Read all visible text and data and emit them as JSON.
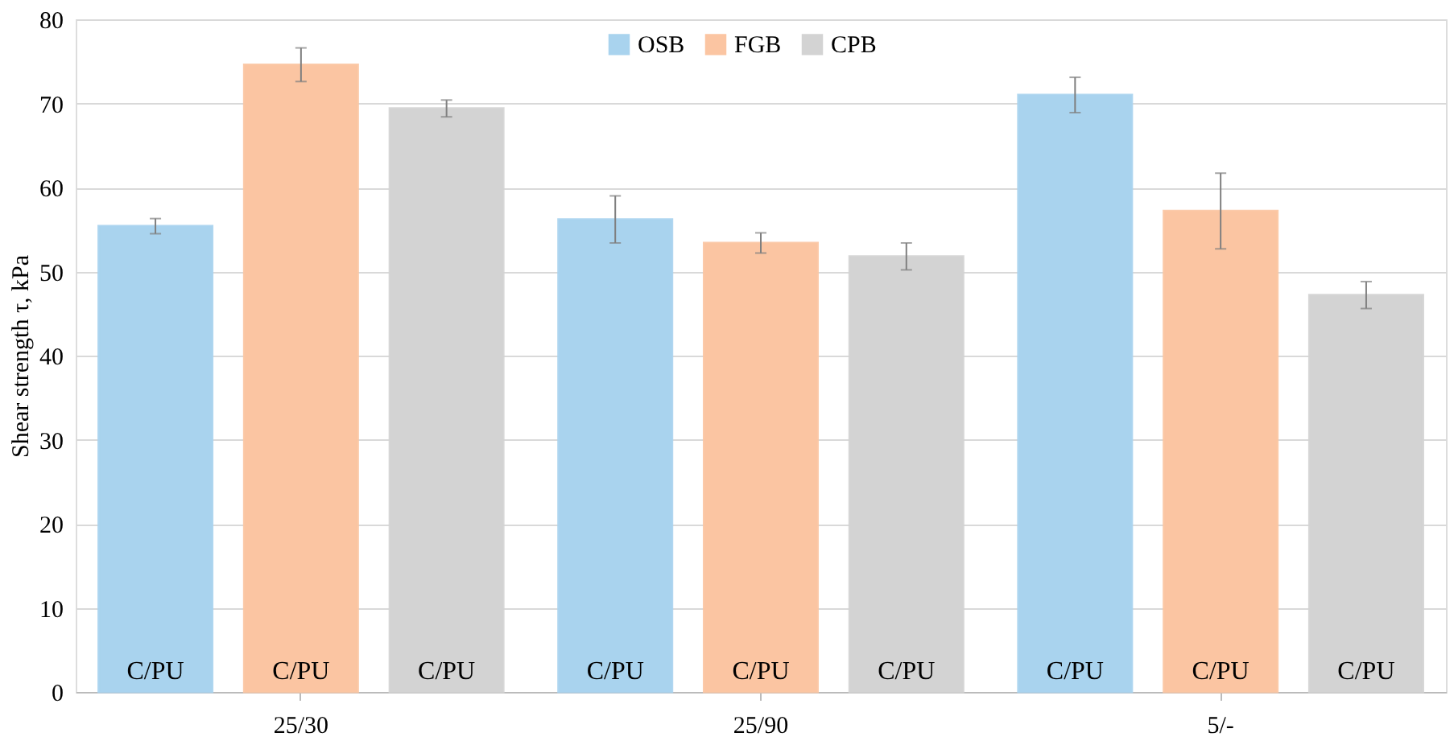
{
  "chart_data": {
    "type": "bar",
    "ylabel": "Shear strength τ, kPa",
    "categories": [
      "25/30",
      "25/90",
      "5/-"
    ],
    "series": [
      {
        "name": "OSB",
        "color": "#a9d3ee",
        "values": [
          55.4,
          56.2,
          71.0
        ],
        "errors": [
          0.9,
          2.8,
          2.1
        ],
        "value_labels": [
          "C/PU",
          "C/PU",
          "C/PU"
        ]
      },
      {
        "name": "FGB",
        "color": "#fbc5a2",
        "values": [
          74.6,
          53.4,
          57.2
        ],
        "errors": [
          2.0,
          1.2,
          4.5
        ],
        "value_labels": [
          "C/PU",
          "C/PU",
          "C/PU"
        ]
      },
      {
        "name": "CPB",
        "color": "#d3d3d3",
        "values": [
          69.4,
          51.8,
          47.2
        ],
        "errors": [
          1.0,
          1.6,
          1.6
        ],
        "value_labels": [
          "C/PU",
          "C/PU",
          "C/PU"
        ]
      }
    ],
    "ylim": [
      0,
      80
    ],
    "yticks": [
      0,
      10,
      20,
      30,
      40,
      50,
      60,
      70,
      80
    ],
    "grid": "y",
    "legend": "top"
  }
}
